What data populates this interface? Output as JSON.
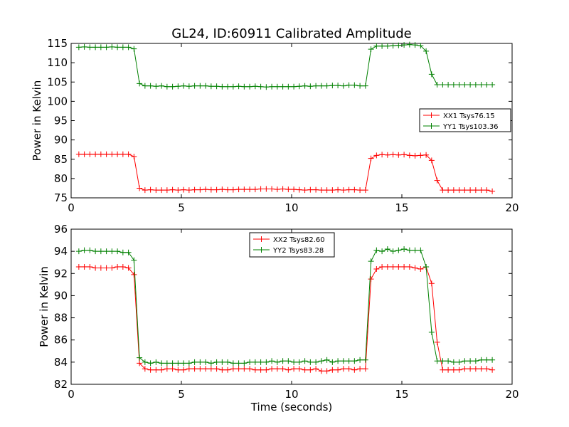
{
  "figure_title": "GL24, ID:60911 Calibrated Amplitude",
  "chart_data": [
    {
      "type": "line",
      "title": "GL24, ID:60911 Calibrated Amplitude",
      "xlabel": "",
      "ylabel": "Power in Kelvin",
      "xlim": [
        0,
        20
      ],
      "ylim": [
        75,
        115
      ],
      "xticks": [
        "0",
        "5",
        "10",
        "15",
        "20"
      ],
      "yticks": [
        "75",
        "80",
        "85",
        "90",
        "95",
        "100",
        "105",
        "110",
        "115"
      ],
      "legend_position": "right",
      "x": [
        0.35,
        0.6,
        0.85,
        1.1,
        1.35,
        1.6,
        1.85,
        2.1,
        2.35,
        2.6,
        2.85,
        3.1,
        3.35,
        3.6,
        3.85,
        4.1,
        4.35,
        4.6,
        4.85,
        5.1,
        5.35,
        5.6,
        5.85,
        6.1,
        6.35,
        6.6,
        6.85,
        7.1,
        7.35,
        7.6,
        7.85,
        8.1,
        8.35,
        8.6,
        8.85,
        9.1,
        9.35,
        9.6,
        9.85,
        10.1,
        10.35,
        10.6,
        10.85,
        11.1,
        11.35,
        11.6,
        11.85,
        12.1,
        12.35,
        12.6,
        12.85,
        13.1,
        13.35,
        13.6,
        13.85,
        14.1,
        14.35,
        14.6,
        14.85,
        15.1,
        15.35,
        15.6,
        15.85,
        16.1,
        16.35,
        16.6,
        16.85,
        17.1,
        17.35,
        17.6,
        17.85,
        18.1,
        18.35,
        18.6,
        18.85,
        19.1
      ],
      "series": [
        {
          "name": "XX1 Tsys76.15",
          "color": "#ff0000",
          "values": [
            86.3,
            86.3,
            86.3,
            86.3,
            86.3,
            86.3,
            86.3,
            86.3,
            86.3,
            86.3,
            85.7,
            77.5,
            77.0,
            77.1,
            77.0,
            77.0,
            77.0,
            77.1,
            77.0,
            77.1,
            77.0,
            77.1,
            77.1,
            77.2,
            77.1,
            77.1,
            77.2,
            77.1,
            77.1,
            77.2,
            77.2,
            77.2,
            77.2,
            77.3,
            77.3,
            77.3,
            77.2,
            77.3,
            77.2,
            77.2,
            77.1,
            77.0,
            77.1,
            77.1,
            77.0,
            77.0,
            77.0,
            77.1,
            77.0,
            77.1,
            77.1,
            77.0,
            77.0,
            85.2,
            86.0,
            86.2,
            86.1,
            86.2,
            86.1,
            86.2,
            86.0,
            85.9,
            86.0,
            86.1,
            84.7,
            79.5,
            77.0,
            77.0,
            77.0,
            77.0,
            77.0,
            77.0,
            77.0,
            77.0,
            77.0,
            76.7
          ]
        },
        {
          "name": "YY1 Tsys103.36",
          "color": "#008000",
          "values": [
            114.0,
            114.1,
            114.0,
            114.0,
            114.0,
            114.0,
            114.1,
            114.0,
            114.0,
            114.0,
            113.6,
            104.6,
            104.0,
            104.0,
            103.9,
            104.0,
            103.8,
            103.8,
            103.9,
            104.0,
            103.9,
            104.0,
            104.0,
            104.0,
            103.9,
            103.9,
            103.8,
            103.8,
            103.8,
            103.9,
            103.8,
            103.8,
            103.9,
            103.8,
            103.7,
            103.8,
            103.8,
            103.8,
            103.8,
            103.8,
            103.9,
            104.0,
            103.9,
            104.0,
            104.0,
            104.0,
            104.1,
            104.1,
            104.0,
            104.2,
            104.2,
            104.0,
            104.0,
            113.5,
            114.3,
            114.3,
            114.3,
            114.4,
            114.5,
            114.6,
            114.7,
            114.6,
            114.4,
            113.0,
            107.0,
            104.3,
            104.3,
            104.3,
            104.3,
            104.3,
            104.3,
            104.3,
            104.3,
            104.3,
            104.3,
            104.3
          ]
        }
      ]
    },
    {
      "type": "line",
      "title": "",
      "xlabel": "Time (seconds)",
      "ylabel": "Power in Kelvin",
      "xlim": [
        0,
        20
      ],
      "ylim": [
        82,
        96
      ],
      "xticks": [
        "0",
        "5",
        "10",
        "15",
        "20"
      ],
      "yticks": [
        "82",
        "84",
        "86",
        "88",
        "90",
        "92",
        "94",
        "96"
      ],
      "legend_position": "top-center",
      "x": [
        0.35,
        0.6,
        0.85,
        1.1,
        1.35,
        1.6,
        1.85,
        2.1,
        2.35,
        2.6,
        2.85,
        3.1,
        3.35,
        3.6,
        3.85,
        4.1,
        4.35,
        4.6,
        4.85,
        5.1,
        5.35,
        5.6,
        5.85,
        6.1,
        6.35,
        6.6,
        6.85,
        7.1,
        7.35,
        7.6,
        7.85,
        8.1,
        8.35,
        8.6,
        8.85,
        9.1,
        9.35,
        9.6,
        9.85,
        10.1,
        10.35,
        10.6,
        10.85,
        11.1,
        11.35,
        11.6,
        11.85,
        12.1,
        12.35,
        12.6,
        12.85,
        13.1,
        13.35,
        13.6,
        13.85,
        14.1,
        14.35,
        14.6,
        14.85,
        15.1,
        15.35,
        15.6,
        15.85,
        16.1,
        16.35,
        16.6,
        16.85,
        17.1,
        17.35,
        17.6,
        17.85,
        18.1,
        18.35,
        18.6,
        18.85,
        19.1
      ],
      "series": [
        {
          "name": "XX2 Tsys82.60",
          "color": "#ff0000",
          "values": [
            92.6,
            92.6,
            92.6,
            92.5,
            92.5,
            92.5,
            92.5,
            92.6,
            92.6,
            92.5,
            91.9,
            83.9,
            83.4,
            83.3,
            83.3,
            83.3,
            83.4,
            83.4,
            83.3,
            83.3,
            83.4,
            83.4,
            83.4,
            83.4,
            83.4,
            83.4,
            83.3,
            83.3,
            83.4,
            83.4,
            83.4,
            83.4,
            83.3,
            83.3,
            83.3,
            83.4,
            83.4,
            83.4,
            83.3,
            83.4,
            83.4,
            83.3,
            83.3,
            83.4,
            83.2,
            83.2,
            83.3,
            83.3,
            83.4,
            83.4,
            83.3,
            83.4,
            83.4,
            91.5,
            92.4,
            92.6,
            92.6,
            92.6,
            92.6,
            92.6,
            92.6,
            92.5,
            92.4,
            92.6,
            91.1,
            85.8,
            83.3,
            83.3,
            83.3,
            83.3,
            83.4,
            83.4,
            83.4,
            83.4,
            83.4,
            83.3
          ]
        },
        {
          "name": "YY2 Tsys83.28",
          "color": "#008000",
          "values": [
            94.0,
            94.1,
            94.1,
            94.0,
            94.0,
            94.0,
            94.0,
            94.0,
            93.9,
            93.9,
            93.2,
            84.4,
            84.0,
            83.9,
            84.0,
            83.9,
            83.9,
            83.9,
            83.9,
            83.9,
            83.9,
            84.0,
            84.0,
            84.0,
            83.9,
            84.0,
            84.0,
            84.0,
            83.9,
            83.9,
            83.9,
            84.0,
            84.0,
            84.0,
            84.0,
            84.1,
            84.0,
            84.1,
            84.1,
            84.0,
            84.0,
            84.1,
            84.0,
            84.0,
            84.1,
            84.2,
            84.0,
            84.1,
            84.1,
            84.1,
            84.1,
            84.2,
            84.2,
            93.1,
            94.1,
            94.0,
            94.2,
            94.0,
            94.1,
            94.2,
            94.1,
            94.1,
            94.1,
            92.6,
            86.7,
            84.1,
            84.1,
            84.1,
            84.0,
            84.0,
            84.1,
            84.1,
            84.1,
            84.2,
            84.2,
            84.2
          ]
        }
      ]
    }
  ]
}
